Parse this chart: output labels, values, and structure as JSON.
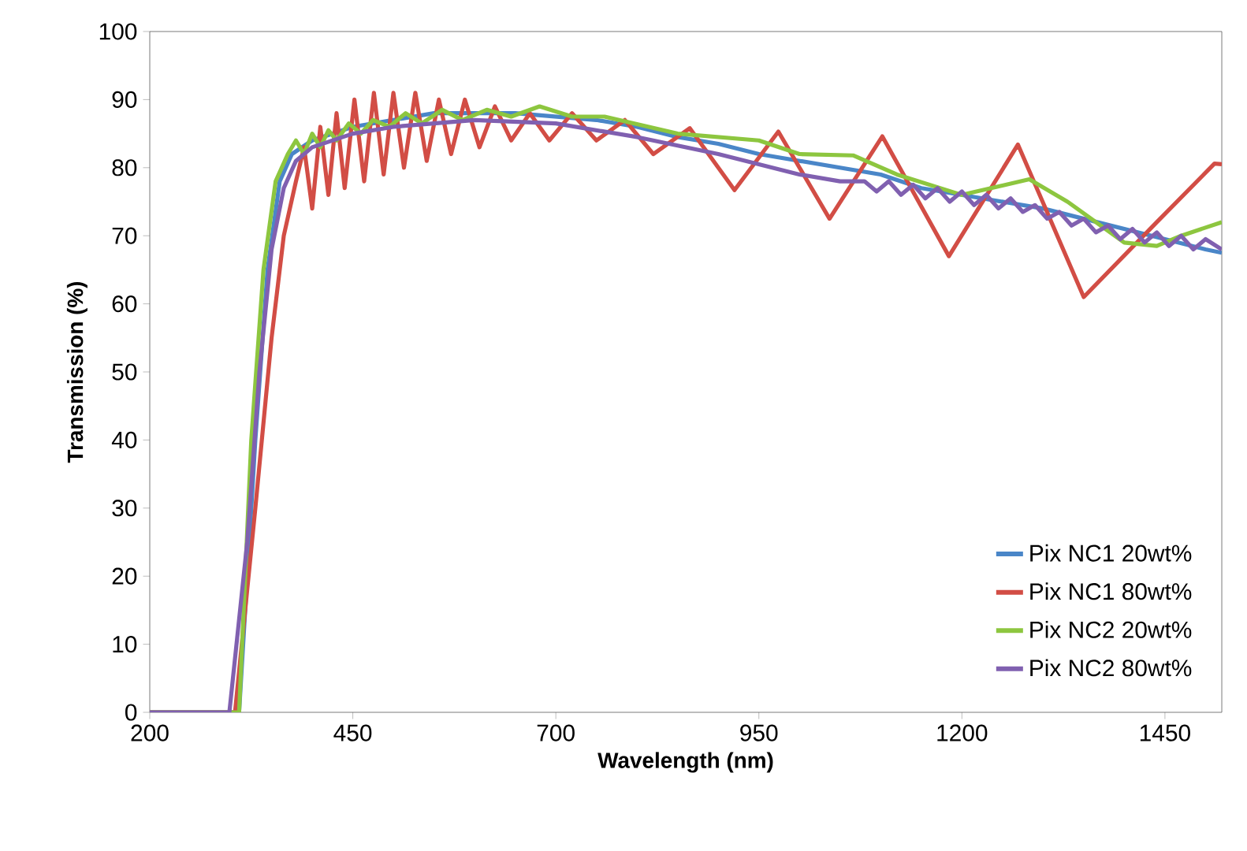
{
  "chart_data": {
    "type": "line",
    "xlabel": "Wavelength (nm)",
    "ylabel": "Transmission (%)",
    "xlim": [
      200,
      1520
    ],
    "ylim": [
      0,
      100
    ],
    "xticks": [
      200,
      450,
      700,
      950,
      1200,
      1450
    ],
    "yticks": [
      0,
      10,
      20,
      30,
      40,
      50,
      60,
      70,
      80,
      90,
      100
    ],
    "grid": false,
    "legend": "bottom right",
    "marker": "none",
    "line_style": "solid",
    "series": [
      {
        "name": "Pix NC1 20wt%",
        "color": "#4a86c8",
        "x": [
          200,
          300,
          310,
          330,
          345,
          360,
          375,
          400,
          450,
          500,
          550,
          600,
          650,
          700,
          750,
          800,
          850,
          900,
          950,
          1000,
          1050,
          1100,
          1150,
          1200,
          1250,
          1300,
          1350,
          1400,
          1450,
          1500,
          1520
        ],
        "values": [
          0,
          0,
          0,
          40,
          65,
          78,
          82,
          84,
          86,
          87,
          88,
          88,
          88,
          87.5,
          87,
          86,
          84.5,
          83.5,
          82,
          81,
          80,
          79,
          77,
          76,
          75,
          74,
          72.5,
          71,
          69.5,
          68,
          67.5
        ]
      },
      {
        "name": "Pix NC1 80wt%",
        "color": "#d24d45",
        "x": [
          200,
          300,
          305,
          330,
          350,
          365,
          380,
          390,
          400,
          410,
          420,
          430,
          440,
          452,
          464,
          476,
          488,
          500,
          513,
          527,
          541,
          556,
          571,
          588,
          606,
          625,
          645,
          668,
          692,
          720,
          750,
          785,
          820,
          865,
          920,
          974,
          1037,
          1102,
          1184,
          1269,
          1350,
          1440,
          1511,
          1520
        ],
        "values": [
          0,
          0,
          0,
          30,
          55,
          70,
          78,
          83,
          74,
          86,
          76,
          88,
          77,
          90,
          78,
          91,
          79,
          91,
          80,
          91,
          81,
          90,
          82,
          90,
          83,
          89,
          84,
          88,
          84,
          88,
          84,
          87,
          82,
          85.8,
          76.7,
          85.3,
          72.5,
          84.6,
          67,
          83.4,
          61,
          72,
          80.6,
          80.5
        ]
      },
      {
        "name": "Pix NC2 20wt%",
        "color": "#8dc63f",
        "x": [
          200,
          300,
          310,
          325,
          340,
          355,
          370,
          380,
          390,
          400,
          410,
          420,
          430,
          445,
          460,
          475,
          495,
          515,
          535,
          560,
          585,
          615,
          645,
          680,
          720,
          760,
          850,
          900,
          950,
          1000,
          1066,
          1120,
          1200,
          1283,
          1330,
          1400,
          1440,
          1470,
          1520
        ],
        "values": [
          0,
          0,
          0,
          40,
          65,
          78,
          82,
          84,
          82,
          85,
          83,
          85.5,
          84,
          86.5,
          85,
          87,
          86,
          88,
          86.5,
          88.5,
          87,
          88.5,
          87.5,
          89,
          87.5,
          87.5,
          85,
          84.5,
          84,
          82,
          81.8,
          79,
          76,
          78.3,
          75,
          69,
          68.5,
          70,
          72
        ]
      },
      {
        "name": "Pix NC2 80wt%",
        "color": "#8060b0",
        "x": [
          200,
          298,
          320,
          335,
          350,
          365,
          380,
          400,
          450,
          500,
          600,
          700,
          800,
          900,
          950,
          1000,
          1050,
          1080,
          1095,
          1110,
          1125,
          1140,
          1155,
          1170,
          1185,
          1200,
          1215,
          1230,
          1245,
          1260,
          1275,
          1290,
          1305,
          1320,
          1335,
          1350,
          1365,
          1380,
          1395,
          1410,
          1425,
          1440,
          1455,
          1470,
          1485,
          1500,
          1520
        ],
        "values": [
          0,
          0,
          25,
          50,
          68,
          77,
          81,
          83,
          85,
          86,
          87,
          86.5,
          84.5,
          82,
          80.5,
          79,
          78,
          78,
          76.5,
          78,
          76,
          77.5,
          75.5,
          77,
          75,
          76.5,
          74.5,
          76,
          74,
          75.5,
          73.5,
          74.5,
          72.5,
          73.5,
          71.5,
          72.5,
          70.5,
          71.5,
          69.5,
          71,
          69,
          70.5,
          68.5,
          70,
          68,
          69.5,
          68
        ]
      }
    ]
  }
}
